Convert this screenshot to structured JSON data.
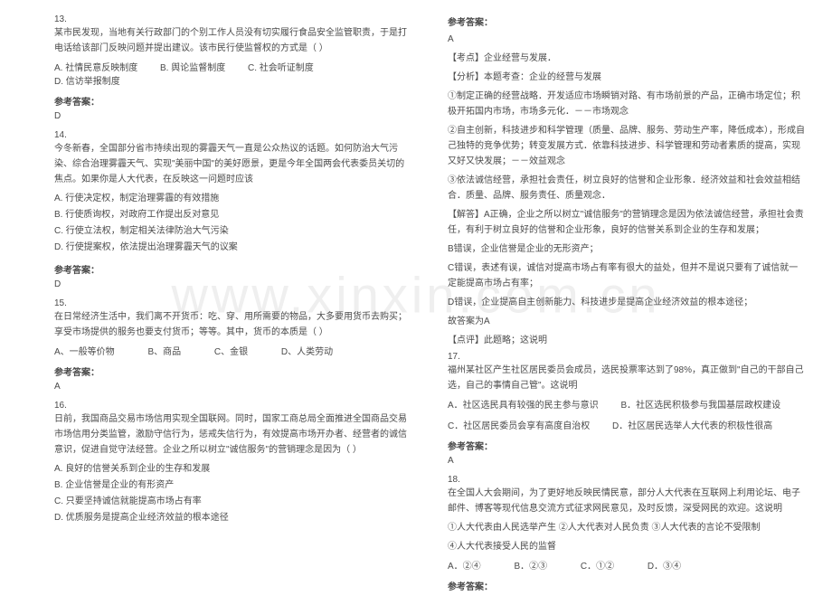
{
  "watermark": "www.xinxin.com.cn",
  "left": {
    "q13": {
      "num": "13.",
      "stem": "某市民发现，当地有关行政部门的个别工作人员没有切实履行食品安全监管职责，于是打电话给该部门反映问题并提出建议。该市民行使监督权的方式是（        ）",
      "opts": {
        "a": "A. 社情民意反映制度",
        "b": "B. 舆论监督制度",
        "c": "C. 社会听证制度",
        "d": "D. 信访举报制度"
      },
      "ansLabel": "参考答案：",
      "ans": "D"
    },
    "q14": {
      "num": "14.",
      "stem": "今冬新春，全国部分省市持续出现的雾霾天气一直是公众热议的话题。如何防治大气污染、综合治理雾霾天气、实现\"美丽中国\"的美好愿景，更是今年全国两会代表委员关切的焦点。如果你是人大代表，在反映这一问题时应该",
      "opts": {
        "a": "A. 行使决定权，制定治理雾霾的有效措施",
        "b": "B. 行使质询权，对政府工作提出反对意见",
        "c": "C. 行使立法权，制定相关法律防治大气污染",
        "d": "D. 行使提案权，依法提出治理雾霾天气的议案"
      },
      "ansLabel": "参考答案：",
      "ans": "D"
    },
    "q15": {
      "num": "15.",
      "stem": "在日常经济生活中，我们离不开货币：吃、穿、用所需要的物品，大多要用货币去购买；享受市场提供的服务也要支付货币；等等。其中，货币的本质是（        ）",
      "opts": {
        "a": "A、一般等价物",
        "b": "B、商品",
        "c": "C、金银",
        "d": "D、人类劳动"
      },
      "ansLabel": "参考答案：",
      "ans": "A"
    },
    "q16": {
      "num": "16.",
      "stem": "日前，我国商品交易市场信用实现全国联网。同时，国家工商总局全面推进全国商品交易市场信用分类监管，激励守信行为，惩戒失信行为，有效提高市场开办者、经营者的诚信意识，促进自觉守法经营。企业之所以树立\"诚信服务\"的营销理念是因为（    ）",
      "opts": {
        "a": "A. 良好的信誉关系到企业的生存和发展",
        "b": "B. 企业信誉是企业的有形资产",
        "c": "C. 只要坚持诚信就能提高市场占有率",
        "d": "D. 优质服务是提高企业经济效益的根本途径"
      }
    }
  },
  "right": {
    "q16": {
      "ansLabel": "参考答案：",
      "ans": "A",
      "kd": "【考点】企业经营与发展．",
      "fx": "【分析】本题考查：企业的经营与发展",
      "p1": "①制定正确的经营战略．开发适应市场瞬销对路、有市场前景的产品，正确市场定位；积极开拓国内市场，市场多元化．－－市场观念",
      "p2": "②自主创新，科技进步和科学管理（质量、品牌、服务、劳动生产率，降低成本），形成自己独特的竞争优势；转变发展方式．依靠科技进步、科学管理和劳动者素质的提高，实现又好又快发展；－－效益观念",
      "p3": "③依法诚信经营，承担社会责任，树立良好的信誉和企业形象．经济效益和社会效益相结合．质量、品牌、服务责任、质量观念．",
      "jd": "【解答】A正确，企业之所以树立\"诚信服务\"的营销理念是因为依法诚信经营，承担社会责任，有利于树立良好的信誉和企业形象，良好的信誉关系到企业的生存和发展；",
      "b": "B错误，企业信誉是企业的无形资产；",
      "c": "C错误，表述有误，诚信对提高市场占有率有很大的益处，但并不是说只要有了诚信就一定能提高市场占有率；",
      "d": "D错误，企业提高自主创新能力、科技进步是提高企业经济效益的根本途径；",
      "g": "故答案为A",
      "dp": "【点评】此题略；这说明"
    },
    "q17": {
      "num": "17.",
      "stem": "福州某社区产生社区居民委员会成员，选民投票率达到了98%，真正做到\"自己的干部自己选，自己的事情自己管\"。这说明",
      "opts": {
        "a": "A．社区选民具有较强的民主参与意识",
        "b": "B．社区选民积极参与我国基层政权建设",
        "c": "C．社区居民委员会享有高度自治权",
        "d": "D．社区居民选举人大代表的积极性很高"
      },
      "ansLabel": "参考答案：",
      "ans": "A"
    },
    "q18": {
      "num": "18.",
      "stem": "在全国人大会期间，为了更好地反映民情民意，部分人大代表在互联网上利用论坛、电子邮件、博客等现代信息交流方式征求网民意见，及时反馈，深受网民的欢迎。这说明",
      "p1": "①人大代表由人民选举产生  ②人大代表对人民负责  ③人大代表的言论不受限制",
      "p2": "④人大代表接受人民的监督",
      "opts": {
        "a": "A．②④",
        "b": "B．②③",
        "c": "C．①②",
        "d": "D．③④"
      },
      "ansLabel": "参考答案："
    }
  }
}
